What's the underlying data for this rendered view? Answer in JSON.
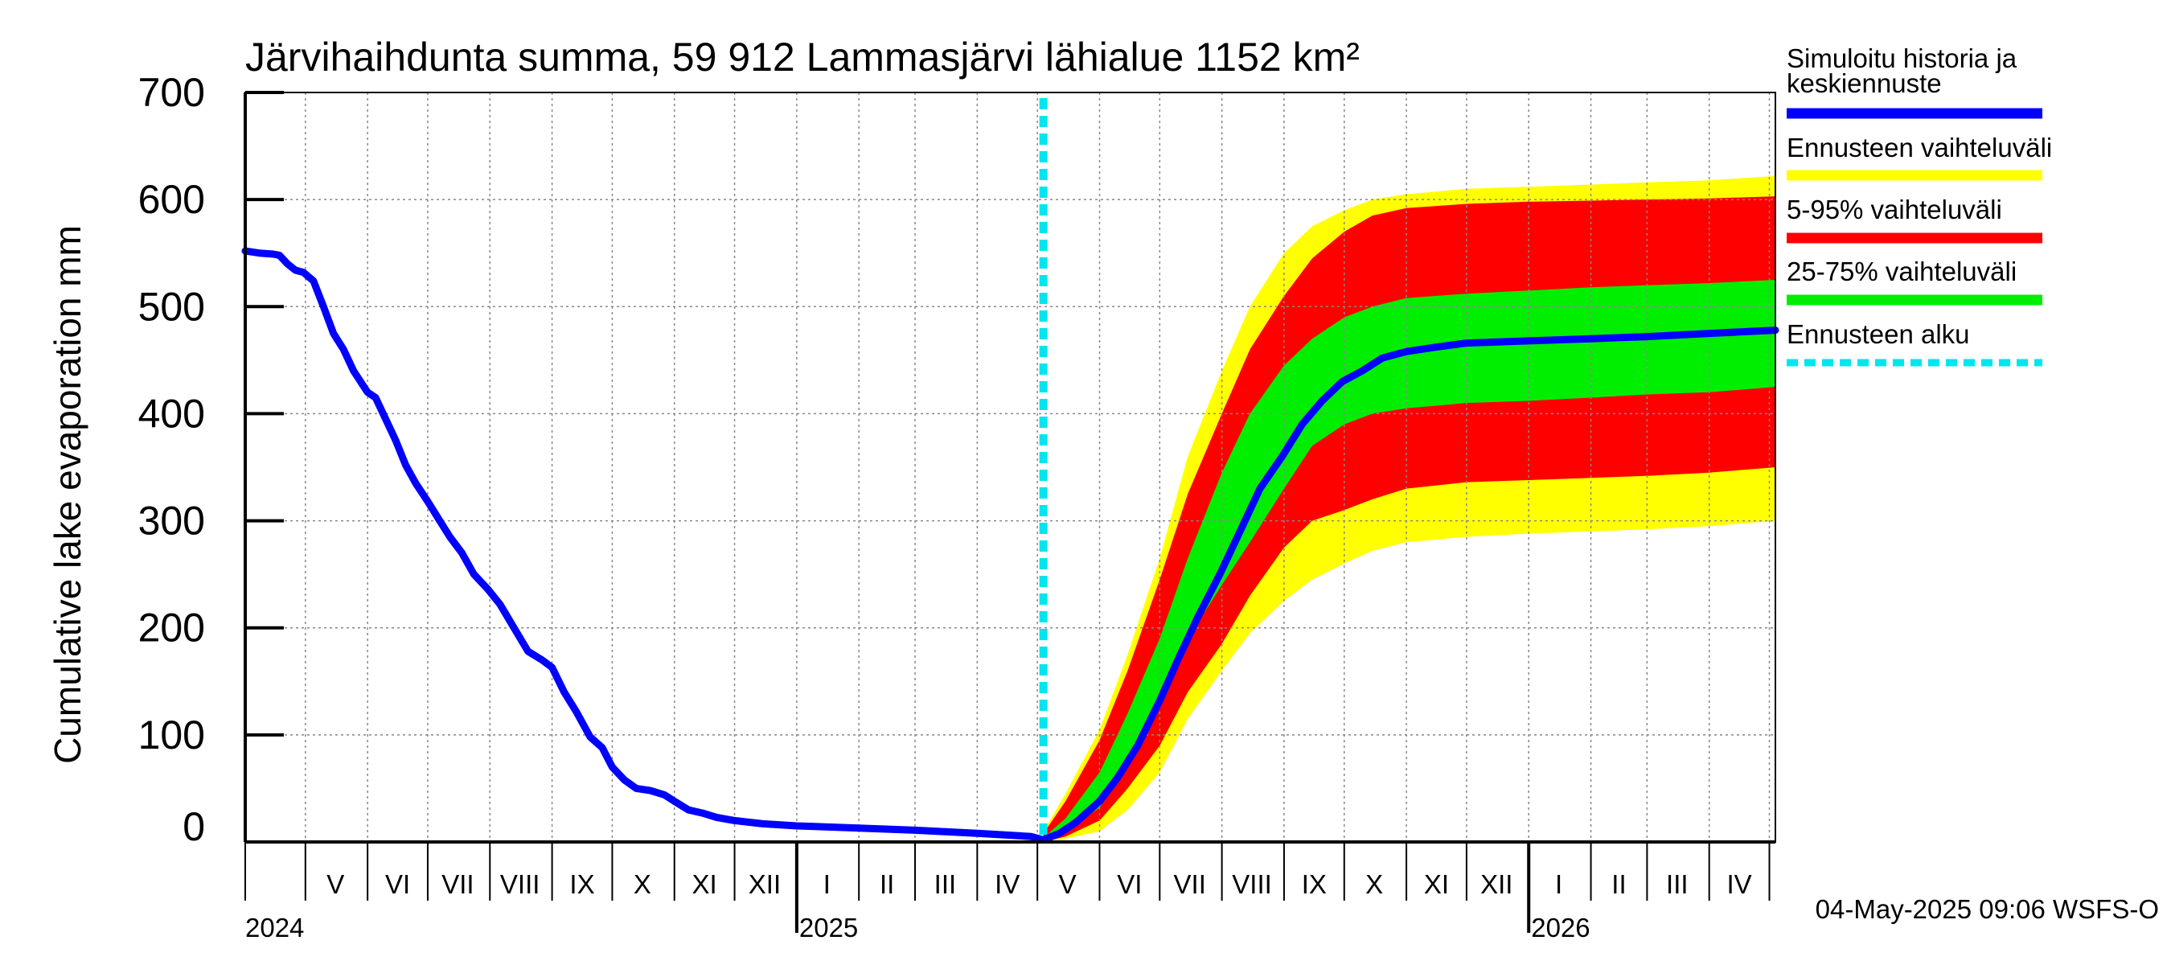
{
  "chart_data": {
    "type": "area",
    "title": "Järvihaihdunta summa, 59 912 Lammasjärvi lähialue 1152 km²",
    "ylabel": "Cumulative lake evaporation   mm",
    "xlabel": "",
    "xlim": [
      "2024-04-01",
      "2026-05-04"
    ],
    "ylim": [
      0,
      700
    ],
    "yticks": [
      0,
      100,
      200,
      300,
      400,
      500,
      600,
      700
    ],
    "grid": true,
    "legend_position": "right",
    "forecast_start": "2025-05-04",
    "x_month_labels": [
      {
        "label": "V",
        "date": "2024-05-16"
      },
      {
        "label": "VI",
        "date": "2024-06-16"
      },
      {
        "label": "VII",
        "date": "2024-07-16"
      },
      {
        "label": "VIII",
        "date": "2024-08-16"
      },
      {
        "label": "IX",
        "date": "2024-09-16"
      },
      {
        "label": "X",
        "date": "2024-10-16"
      },
      {
        "label": "XI",
        "date": "2024-11-16"
      },
      {
        "label": "XII",
        "date": "2024-12-16"
      },
      {
        "label": "I",
        "date": "2025-01-16"
      },
      {
        "label": "II",
        "date": "2025-02-15"
      },
      {
        "label": "III",
        "date": "2025-03-16"
      },
      {
        "label": "IV",
        "date": "2025-04-16"
      },
      {
        "label": "V",
        "date": "2025-05-16"
      },
      {
        "label": "VI",
        "date": "2025-06-16"
      },
      {
        "label": "VII",
        "date": "2025-07-16"
      },
      {
        "label": "VIII",
        "date": "2025-08-16"
      },
      {
        "label": "IX",
        "date": "2025-09-16"
      },
      {
        "label": "X",
        "date": "2025-10-16"
      },
      {
        "label": "XI",
        "date": "2025-11-16"
      },
      {
        "label": "XII",
        "date": "2025-12-16"
      },
      {
        "label": "I",
        "date": "2026-01-16"
      },
      {
        "label": "II",
        "date": "2026-02-15"
      },
      {
        "label": "III",
        "date": "2026-03-16"
      },
      {
        "label": "IV",
        "date": "2026-04-16"
      }
    ],
    "x_year_labels": [
      {
        "label": "2024",
        "date": "2024-04-01"
      },
      {
        "label": "2025",
        "date": "2025-01-01"
      },
      {
        "label": "2026",
        "date": "2026-01-01"
      }
    ],
    "series": [
      {
        "name": "Simuloitu historia ja keskiennuste",
        "color": "#0000ff",
        "kind": "line",
        "x": [
          "2024-04-01",
          "2024-04-08",
          "2024-04-15",
          "2024-04-18",
          "2024-04-22",
          "2024-04-26",
          "2024-04-30",
          "2024-05-05",
          "2024-05-10",
          "2024-05-15",
          "2024-05-20",
          "2024-05-25",
          "2024-06-01",
          "2024-06-05",
          "2024-06-10",
          "2024-06-15",
          "2024-06-20",
          "2024-06-25",
          "2024-07-01",
          "2024-07-07",
          "2024-07-12",
          "2024-07-18",
          "2024-07-24",
          "2024-07-31",
          "2024-08-06",
          "2024-08-13",
          "2024-08-20",
          "2024-08-27",
          "2024-09-01",
          "2024-09-07",
          "2024-09-13",
          "2024-09-20",
          "2024-09-26",
          "2024-10-01",
          "2024-10-07",
          "2024-10-13",
          "2024-10-20",
          "2024-10-27",
          "2024-11-01",
          "2024-11-08",
          "2024-11-15",
          "2024-11-22",
          "2024-12-01",
          "2024-12-15",
          "2025-01-01",
          "2025-02-01",
          "2025-03-01",
          "2025-04-01",
          "2025-04-20",
          "2025-04-28",
          "2025-05-04",
          "2025-05-12",
          "2025-05-20",
          "2025-06-01",
          "2025-06-10",
          "2025-06-20",
          "2025-07-01",
          "2025-07-10",
          "2025-07-20",
          "2025-07-31",
          "2025-08-10",
          "2025-08-20",
          "2025-08-31",
          "2025-09-10",
          "2025-09-20",
          "2025-09-30",
          "2025-10-10",
          "2025-10-20",
          "2025-11-01",
          "2025-11-15",
          "2025-12-01",
          "2026-01-01",
          "2026-02-01",
          "2026-03-01",
          "2026-04-01",
          "2026-05-04"
        ],
        "y": [
          552,
          550,
          549,
          548,
          540,
          534,
          532,
          524,
          500,
          475,
          460,
          440,
          420,
          415,
          395,
          375,
          352,
          335,
          318,
          300,
          285,
          270,
          250,
          236,
          222,
          200,
          178,
          170,
          163,
          140,
          122,
          98,
          88,
          70,
          58,
          50,
          48,
          44,
          38,
          30,
          27,
          23,
          20,
          17,
          15,
          13,
          11,
          8,
          6,
          5,
          2,
          8,
          18,
          38,
          60,
          90,
          132,
          170,
          210,
          250,
          290,
          330,
          360,
          390,
          412,
          430,
          440,
          452,
          458,
          462,
          466,
          468,
          470,
          472,
          475,
          478
        ]
      },
      {
        "name": "Ennusteen vaihteluväli",
        "color": "#ffff00",
        "kind": "band",
        "x": [
          "2025-05-04",
          "2025-05-15",
          "2025-06-01",
          "2025-06-15",
          "2025-07-01",
          "2025-07-15",
          "2025-08-01",
          "2025-08-15",
          "2025-09-01",
          "2025-09-15",
          "2025-10-01",
          "2025-10-15",
          "2025-11-01",
          "2025-12-01",
          "2026-01-01",
          "2026-02-01",
          "2026-03-01",
          "2026-04-01",
          "2026-05-04"
        ],
        "lower": [
          0,
          3,
          10,
          30,
          65,
          115,
          160,
          195,
          225,
          245,
          260,
          272,
          280,
          285,
          288,
          290,
          292,
          295,
          300
        ],
        "upper": [
          10,
          45,
          105,
          175,
          265,
          360,
          440,
          500,
          550,
          575,
          590,
          600,
          605,
          610,
          612,
          614,
          616,
          618,
          622
        ]
      },
      {
        "name": "5-95% vaihteluväli",
        "color": "#ff0000",
        "kind": "band",
        "x": [
          "2025-05-04",
          "2025-05-15",
          "2025-06-01",
          "2025-06-15",
          "2025-07-01",
          "2025-07-15",
          "2025-08-01",
          "2025-08-15",
          "2025-09-01",
          "2025-09-15",
          "2025-10-01",
          "2025-10-15",
          "2025-11-01",
          "2025-12-01",
          "2026-01-01",
          "2026-02-01",
          "2026-03-01",
          "2026-04-01",
          "2026-05-04"
        ],
        "lower": [
          0,
          5,
          20,
          50,
          90,
          140,
          185,
          230,
          275,
          300,
          310,
          320,
          330,
          336,
          338,
          340,
          342,
          345,
          350
        ],
        "upper": [
          8,
          38,
          95,
          160,
          245,
          325,
          400,
          460,
          510,
          545,
          570,
          585,
          592,
          596,
          598,
          599,
          600,
          601,
          603
        ]
      },
      {
        "name": "25-75% vaihteluväli",
        "color": "#00ee00",
        "kind": "band",
        "x": [
          "2025-05-04",
          "2025-05-15",
          "2025-06-01",
          "2025-06-15",
          "2025-07-01",
          "2025-07-15",
          "2025-08-01",
          "2025-08-15",
          "2025-09-01",
          "2025-09-15",
          "2025-10-01",
          "2025-10-15",
          "2025-11-01",
          "2025-12-01",
          "2026-01-01",
          "2026-02-01",
          "2026-03-01",
          "2026-04-01",
          "2026-05-04"
        ],
        "lower": [
          1,
          10,
          32,
          72,
          130,
          190,
          240,
          280,
          330,
          370,
          390,
          400,
          405,
          410,
          412,
          415,
          418,
          420,
          425
        ],
        "upper": [
          4,
          22,
          65,
          120,
          190,
          265,
          345,
          400,
          445,
          470,
          490,
          500,
          508,
          512,
          515,
          518,
          520,
          522,
          525
        ]
      },
      {
        "name": "Ennusteen alku",
        "color": "#00e5ee",
        "kind": "vline",
        "x": [
          "2025-05-04"
        ]
      }
    ]
  },
  "legend": [
    {
      "label_lines": [
        "Simuloitu historia ja",
        "keskiennuste"
      ],
      "color": "#0000ff",
      "style": "solid"
    },
    {
      "label_lines": [
        "Ennusteen vaihteluväli"
      ],
      "color": "#ffff00",
      "style": "solid"
    },
    {
      "label_lines": [
        "5-95% vaihteluväli"
      ],
      "color": "#ff0000",
      "style": "solid"
    },
    {
      "label_lines": [
        "25-75% vaihteluväli"
      ],
      "color": "#00ee00",
      "style": "solid"
    },
    {
      "label_lines": [
        "Ennusteen alku"
      ],
      "color": "#00e5ee",
      "style": "dashed"
    }
  ],
  "timestamp": "04-May-2025 09:06 WSFS-O"
}
